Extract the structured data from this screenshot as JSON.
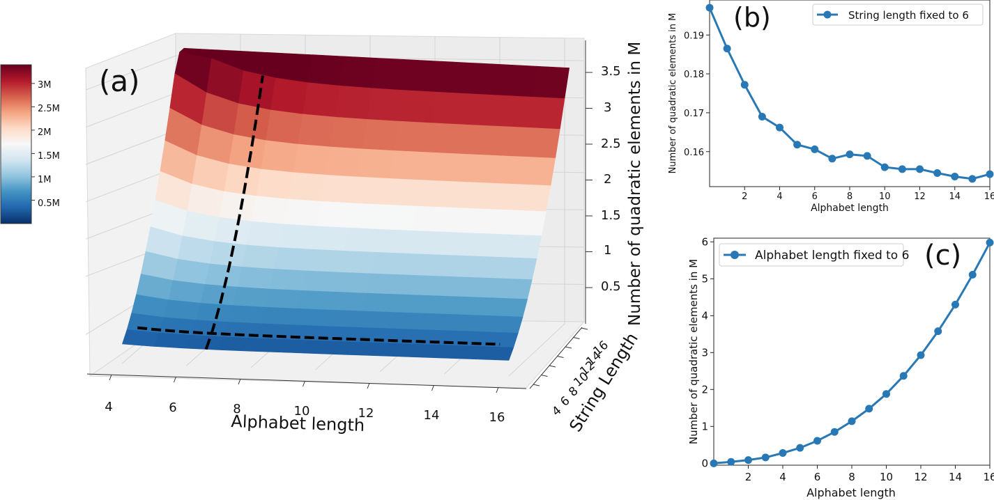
{
  "panel_a": {
    "label": "(a)",
    "x_axis_label": "Alphabet length",
    "y_axis_label": "String Length",
    "z_axis_label": "Number of quadratic elements in M",
    "x_ticks": [
      "4",
      "6",
      "8",
      "10",
      "12",
      "14",
      "16"
    ],
    "y_ticks": [
      "4",
      "6",
      "8",
      "10",
      "12",
      "14",
      "16"
    ],
    "z_ticks": [
      "0.5",
      "1",
      "1.5",
      "2",
      "2.5",
      "3",
      "3.5"
    ],
    "colorbar_ticks": [
      "0.5M",
      "1M",
      "1.5M",
      "2M",
      "2.5M",
      "3M"
    ]
  },
  "panel_b": {
    "label": "(b)",
    "legend": "String length fixed to 6",
    "xlabel": "Alphabet length",
    "ylabel": "Number of quadratic elements in M",
    "x_ticks": [
      "2",
      "4",
      "6",
      "8",
      "10",
      "12",
      "14",
      "16"
    ],
    "y_ticks": [
      "0.16",
      "0.17",
      "0.18",
      "0.19"
    ]
  },
  "panel_c": {
    "label": "(c)",
    "legend": "Alphabet length fixed to 6",
    "xlabel": "Alphabet length",
    "ylabel": "Number of quadratic elements in M",
    "x_ticks": [
      "2",
      "4",
      "6",
      "8",
      "10",
      "12",
      "14",
      "16"
    ],
    "y_ticks": [
      "0",
      "1",
      "2",
      "3",
      "4",
      "5",
      "6"
    ]
  },
  "colors": {
    "line": "#2878b5",
    "colormap": [
      "#08306b",
      "#2166ac",
      "#4393c3",
      "#92c5de",
      "#d1e5f0",
      "#f7f7f7",
      "#fddbc7",
      "#f4a582",
      "#d6604d",
      "#b2182b",
      "#67001f"
    ]
  },
  "chart_data": [
    {
      "type": "surface",
      "x_label": "Alphabet length",
      "y_label": "String Length",
      "z_label": "Number of quadratic elements in M",
      "x_range": [
        4,
        16
      ],
      "y_range": [
        4,
        16
      ],
      "z_range": [
        0,
        3.8
      ],
      "colorbar_range_M": [
        0,
        3.4
      ],
      "colormap": "RdBu_r",
      "description": "Surface rises steeply with string length; fixed alphabet slice and fixed string slice shown as dashed black lines"
    },
    {
      "type": "line",
      "legend": "String length fixed to 6",
      "xlabel": "Alphabet length",
      "ylabel": "Number of quadratic elements in M",
      "xlim": [
        0,
        16
      ],
      "ylim": [
        0.151,
        0.199
      ],
      "x": [
        0,
        1,
        2,
        3,
        4,
        5,
        6,
        7,
        8,
        9,
        10,
        11,
        12,
        13,
        14,
        15,
        16
      ],
      "values": [
        0.197,
        0.1865,
        0.1772,
        0.169,
        0.1662,
        0.1618,
        0.1606,
        0.1582,
        0.1593,
        0.1589,
        0.156,
        0.1555,
        0.1555,
        0.1545,
        0.1536,
        0.153,
        0.1542
      ]
    },
    {
      "type": "line",
      "legend": "Alphabet length fixed to 6",
      "xlabel": "Alphabet length",
      "ylabel": "Number of quadratic elements in M",
      "xlim": [
        0,
        16
      ],
      "ylim": [
        -0.05,
        6.1
      ],
      "x": [
        0,
        1,
        2,
        3,
        4,
        5,
        6,
        7,
        8,
        9,
        10,
        11,
        12,
        13,
        14,
        15,
        16
      ],
      "values": [
        0.0,
        0.04,
        0.09,
        0.16,
        0.28,
        0.42,
        0.61,
        0.85,
        1.14,
        1.48,
        1.88,
        2.37,
        2.93,
        3.58,
        4.3,
        5.11,
        5.98
      ]
    }
  ]
}
